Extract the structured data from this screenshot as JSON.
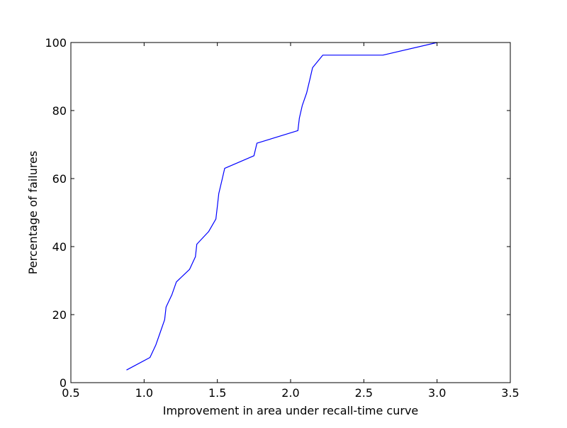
{
  "chart_data": {
    "type": "line",
    "xlabel": "Improvement in area under recall-time curve",
    "ylabel": "Percentage of failures",
    "xlim": [
      0.5,
      3.5
    ],
    "ylim": [
      0,
      100
    ],
    "xticks": [
      0.5,
      1.0,
      1.5,
      2.0,
      2.5,
      3.0,
      3.5
    ],
    "xtick_labels": [
      "0.5",
      "1.0",
      "1.5",
      "2.0",
      "2.5",
      "3.0",
      "3.5"
    ],
    "yticks": [
      0,
      20,
      40,
      60,
      80,
      100
    ],
    "ytick_labels": [
      "0",
      "20",
      "40",
      "60",
      "80",
      "100"
    ],
    "grid": false,
    "line_color": "#0000ff",
    "series": [
      {
        "x": [
          0.88,
          1.04,
          1.08,
          1.11,
          1.14,
          1.15,
          1.19,
          1.22,
          1.31,
          1.35,
          1.36,
          1.44,
          1.49,
          1.5,
          1.51,
          1.53,
          1.55,
          1.75,
          1.77,
          2.05,
          2.06,
          2.08,
          2.11,
          2.13,
          2.15,
          2.22,
          2.63,
          3.0
        ],
        "y": [
          3.7,
          7.4,
          11.1,
          14.8,
          18.5,
          22.2,
          25.9,
          29.6,
          33.3,
          37.0,
          40.7,
          44.4,
          48.1,
          51.9,
          55.6,
          59.3,
          63.0,
          66.7,
          70.4,
          74.1,
          77.8,
          81.5,
          85.2,
          88.9,
          92.6,
          96.3,
          96.3,
          100.0
        ]
      }
    ]
  }
}
